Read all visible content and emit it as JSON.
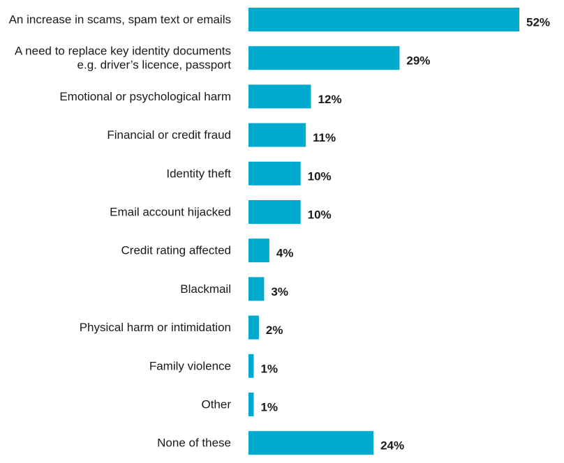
{
  "chart_data": {
    "type": "bar",
    "orientation": "horizontal",
    "title": "",
    "xlabel": "",
    "ylabel": "",
    "grid": false,
    "bar_color": "#00A9CE",
    "value_suffix": "%",
    "categories": [
      [
        "An increase in scams, spam text or emails"
      ],
      [
        "A need to replace key identity documents",
        "e.g. driver’s licence, passport"
      ],
      [
        "Emotional or psychological harm"
      ],
      [
        "Financial or credit fraud"
      ],
      [
        "Identity theft"
      ],
      [
        "Email account hijacked"
      ],
      [
        "Credit rating affected"
      ],
      [
        "Blackmail"
      ],
      [
        "Physical harm or intimidation"
      ],
      [
        "Family violence"
      ],
      [
        "Other"
      ],
      [
        "None of these"
      ]
    ],
    "values": [
      52,
      29,
      12,
      11,
      10,
      10,
      4,
      3,
      2,
      1,
      1,
      24
    ],
    "xlim": [
      0,
      52
    ]
  }
}
